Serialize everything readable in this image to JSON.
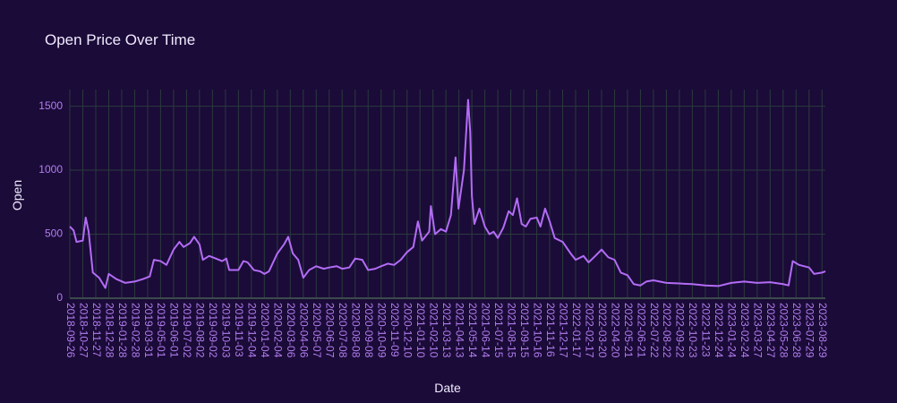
{
  "chart_data": {
    "type": "line",
    "title": "Open Price Over Time",
    "x_label": "Date",
    "y_label": "Open",
    "color": "#b26cf5",
    "grid": true,
    "x": [
      "2018-09-26",
      "2018-10-05",
      "2018-10-12",
      "2018-10-27",
      "2018-11-03",
      "2018-11-10",
      "2018-11-20",
      "2018-12-05",
      "2018-12-20",
      "2018-12-28",
      "2019-01-15",
      "2019-02-05",
      "2019-02-28",
      "2019-03-20",
      "2019-04-05",
      "2019-04-15",
      "2019-05-01",
      "2019-05-15",
      "2019-06-01",
      "2019-06-15",
      "2019-06-25",
      "2019-07-10",
      "2019-07-20",
      "2019-08-02",
      "2019-08-10",
      "2019-08-25",
      "2019-09-10",
      "2019-09-25",
      "2019-10-05",
      "2019-10-12",
      "2019-11-03",
      "2019-11-15",
      "2019-11-25",
      "2019-12-10",
      "2019-12-25",
      "2020-01-04",
      "2020-01-15",
      "2020-02-04",
      "2020-02-20",
      "2020-03-01",
      "2020-03-12",
      "2020-03-25",
      "2020-04-06",
      "2020-04-20",
      "2020-05-07",
      "2020-05-25",
      "2020-06-07",
      "2020-06-25",
      "2020-07-08",
      "2020-07-25",
      "2020-08-08",
      "2020-08-25",
      "2020-09-08",
      "2020-09-25",
      "2020-10-09",
      "2020-10-25",
      "2020-11-09",
      "2020-11-25",
      "2020-12-10",
      "2020-12-25",
      "2021-01-05",
      "2021-01-15",
      "2021-02-01",
      "2021-02-05",
      "2021-02-15",
      "2021-03-01",
      "2021-03-13",
      "2021-03-25",
      "2021-04-05",
      "2021-04-12",
      "2021-04-25",
      "2021-05-05",
      "2021-05-10",
      "2021-05-14",
      "2021-05-20",
      "2021-06-01",
      "2021-06-14",
      "2021-06-25",
      "2021-07-05",
      "2021-07-15",
      "2021-07-28",
      "2021-08-10",
      "2021-08-20",
      "2021-08-30",
      "2021-09-10",
      "2021-09-20",
      "2021-10-01",
      "2021-10-16",
      "2021-10-25",
      "2021-11-05",
      "2021-11-16",
      "2021-11-28",
      "2021-12-17",
      "2022-01-05",
      "2022-01-17",
      "2022-02-05",
      "2022-02-17",
      "2022-03-05",
      "2022-03-20",
      "2022-04-05",
      "2022-04-20",
      "2022-05-05",
      "2022-05-21",
      "2022-06-05",
      "2022-06-21",
      "2022-07-05",
      "2022-07-22",
      "2022-08-22",
      "2022-09-22",
      "2022-10-23",
      "2022-11-23",
      "2022-12-24",
      "2023-01-24",
      "2023-02-24",
      "2023-03-27",
      "2023-04-27",
      "2023-05-28",
      "2023-06-10",
      "2023-06-20",
      "2023-07-05",
      "2023-07-29",
      "2023-08-10",
      "2023-08-29",
      "2023-09-06"
    ],
    "values": [
      560,
      530,
      440,
      450,
      630,
      520,
      200,
      160,
      80,
      190,
      150,
      120,
      130,
      150,
      170,
      300,
      290,
      260,
      380,
      440,
      400,
      430,
      480,
      420,
      300,
      330,
      310,
      290,
      310,
      220,
      220,
      290,
      280,
      220,
      210,
      190,
      210,
      350,
      420,
      480,
      350,
      300,
      160,
      220,
      250,
      230,
      240,
      250,
      230,
      240,
      310,
      300,
      220,
      230,
      250,
      270,
      260,
      300,
      360,
      400,
      600,
      450,
      520,
      720,
      500,
      540,
      520,
      650,
      1100,
      700,
      1000,
      1550,
      1300,
      800,
      580,
      700,
      560,
      500,
      520,
      470,
      550,
      680,
      650,
      780,
      580,
      560,
      620,
      630,
      560,
      700,
      600,
      470,
      440,
      350,
      300,
      330,
      280,
      330,
      380,
      320,
      300,
      200,
      180,
      110,
      100,
      130,
      140,
      120,
      115,
      110,
      100,
      95,
      120,
      130,
      120,
      125,
      110,
      100,
      290,
      260,
      240,
      190,
      200,
      210
    ],
    "xlim": [
      "2018-09-26",
      "2023-09-06"
    ],
    "xticks": [
      "2018-09-26",
      "2018-10-27",
      "2018-11-27",
      "2018-12-28",
      "2019-01-28",
      "2019-02-28",
      "2019-03-31",
      "2019-05-01",
      "2019-06-01",
      "2019-07-02",
      "2019-08-02",
      "2019-09-02",
      "2019-10-03",
      "2019-11-03",
      "2019-12-04",
      "2020-01-04",
      "2020-02-04",
      "2020-03-06",
      "2020-04-06",
      "2020-05-07",
      "2020-06-07",
      "2020-07-08",
      "2020-08-08",
      "2020-09-08",
      "2020-10-09",
      "2020-11-09",
      "2020-12-10",
      "2021-01-10",
      "2021-02-10",
      "2021-03-13",
      "2021-04-13",
      "2021-05-14",
      "2021-06-14",
      "2021-07-15",
      "2021-08-15",
      "2021-09-15",
      "2021-10-16",
      "2021-11-16",
      "2021-12-17",
      "2022-01-17",
      "2022-02-17",
      "2022-03-20",
      "2022-04-20",
      "2022-05-21",
      "2022-06-21",
      "2022-07-22",
      "2022-08-22",
      "2022-09-22",
      "2022-10-23",
      "2022-11-23",
      "2022-12-24",
      "2023-01-24",
      "2023-02-24",
      "2023-03-27",
      "2023-04-27",
      "2023-05-28",
      "2023-06-28",
      "2023-07-29",
      "2023-08-29"
    ],
    "ylim": [
      0,
      1630
    ],
    "yticks": [
      0,
      500,
      1000,
      1500
    ]
  }
}
